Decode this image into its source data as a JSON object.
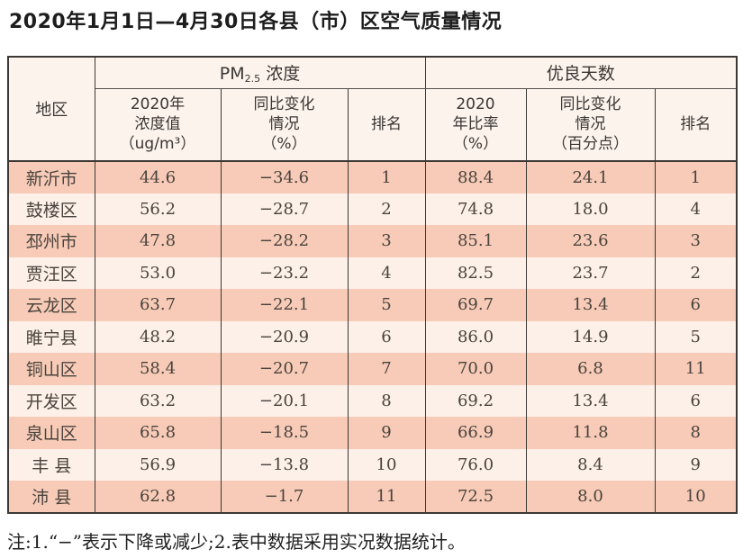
{
  "title": "2020年1月1日—4月30日各县（市）区空气质量情况",
  "note": "注:1.“−”表示下降或减少;2.表中数据采用实况数据统计。",
  "colors": {
    "band_dark": "#f7cbb7",
    "band_light": "#fcf0e8",
    "header_bg": "#fcf3ec",
    "border": "#3c3835",
    "body_text": "#4a433d"
  },
  "table": {
    "col_region": "地区",
    "group1": {
      "prefix": "PM",
      "sub": "2.5",
      "suffix": " 浓度"
    },
    "group2": "优良天数",
    "sub_headers": [
      "2020年\n浓度值\n（ug/m³）",
      "同比变化\n情况\n（%）",
      "排名",
      "2020\n年比率\n（%）",
      "同比变化\n情况\n（百分点）",
      "排名"
    ],
    "rows": [
      {
        "region": "新沂市",
        "pm_value": "44.6",
        "pm_change": "−34.6",
        "pm_rank": "1",
        "good_ratio": "88.4",
        "good_change": "24.1",
        "good_rank": "1"
      },
      {
        "region": "鼓楼区",
        "pm_value": "56.2",
        "pm_change": "−28.7",
        "pm_rank": "2",
        "good_ratio": "74.8",
        "good_change": "18.0",
        "good_rank": "4"
      },
      {
        "region": "邳州市",
        "pm_value": "47.8",
        "pm_change": "−28.2",
        "pm_rank": "3",
        "good_ratio": "85.1",
        "good_change": "23.6",
        "good_rank": "3"
      },
      {
        "region": "贾汪区",
        "pm_value": "53.0",
        "pm_change": "−23.2",
        "pm_rank": "4",
        "good_ratio": "82.5",
        "good_change": "23.7",
        "good_rank": "2"
      },
      {
        "region": "云龙区",
        "pm_value": "63.7",
        "pm_change": "−22.1",
        "pm_rank": "5",
        "good_ratio": "69.7",
        "good_change": "13.4",
        "good_rank": "6"
      },
      {
        "region": "睢宁县",
        "pm_value": "48.2",
        "pm_change": "−20.9",
        "pm_rank": "6",
        "good_ratio": "86.0",
        "good_change": "14.9",
        "good_rank": "5"
      },
      {
        "region": "铜山区",
        "pm_value": "58.4",
        "pm_change": "−20.7",
        "pm_rank": "7",
        "good_ratio": "70.0",
        "good_change": "6.8",
        "good_rank": "11"
      },
      {
        "region": "开发区",
        "pm_value": "63.2",
        "pm_change": "−20.1",
        "pm_rank": "8",
        "good_ratio": "69.2",
        "good_change": "13.4",
        "good_rank": "6"
      },
      {
        "region": "泉山区",
        "pm_value": "65.8",
        "pm_change": "−18.5",
        "pm_rank": "9",
        "good_ratio": "66.9",
        "good_change": "11.8",
        "good_rank": "8"
      },
      {
        "region": "丰 县",
        "pm_value": "56.9",
        "pm_change": "−13.8",
        "pm_rank": "10",
        "good_ratio": "76.0",
        "good_change": "8.4",
        "good_rank": "9"
      },
      {
        "region": "沛 县",
        "pm_value": "62.8",
        "pm_change": "−1.7",
        "pm_rank": "11",
        "good_ratio": "72.5",
        "good_change": "8.0",
        "good_rank": "10"
      }
    ]
  },
  "chart_data": {
    "type": "table",
    "title": "2020年1月1日—4月30日各县（市）区空气质量情况",
    "column_groups": [
      "PM2.5浓度",
      "优良天数"
    ],
    "columns": [
      "地区",
      "2020年浓度值（ug/m³）",
      "同比变化情况（%）",
      "排名",
      "2020年比率（%）",
      "同比变化情况（百分点）",
      "排名"
    ],
    "rows": [
      [
        "新沂市",
        44.6,
        -34.6,
        1,
        88.4,
        24.1,
        1
      ],
      [
        "鼓楼区",
        56.2,
        -28.7,
        2,
        74.8,
        18.0,
        4
      ],
      [
        "邳州市",
        47.8,
        -28.2,
        3,
        85.1,
        23.6,
        3
      ],
      [
        "贾汪区",
        53.0,
        -23.2,
        4,
        82.5,
        23.7,
        2
      ],
      [
        "云龙区",
        63.7,
        -22.1,
        5,
        69.7,
        13.4,
        6
      ],
      [
        "睢宁县",
        48.2,
        -20.9,
        6,
        86.0,
        14.9,
        5
      ],
      [
        "铜山区",
        58.4,
        -20.7,
        7,
        70.0,
        6.8,
        11
      ],
      [
        "开发区",
        63.2,
        -20.1,
        8,
        69.2,
        13.4,
        6
      ],
      [
        "泉山区",
        65.8,
        -18.5,
        9,
        66.9,
        11.8,
        8
      ],
      [
        "丰县",
        56.9,
        -13.8,
        10,
        76.0,
        8.4,
        9
      ],
      [
        "沛县",
        62.8,
        -1.7,
        11,
        72.5,
        8.0,
        10
      ]
    ],
    "note": "注:1.“−”表示下降或减少;2.表中数据采用实况数据统计。"
  }
}
